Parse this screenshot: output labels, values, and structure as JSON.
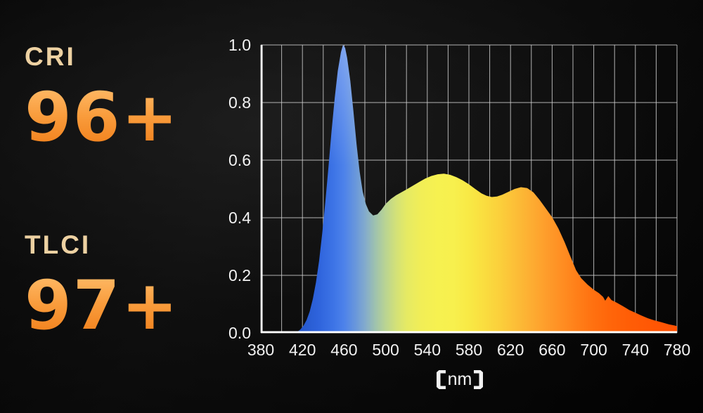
{
  "metrics": [
    {
      "id": "cri",
      "label": "CRI",
      "value": "96+"
    },
    {
      "id": "tlci",
      "label": "TLCI",
      "value": "97+"
    }
  ],
  "colors": {
    "metric_label": "#edd1a2",
    "metric_value_top": "#ffbd6b",
    "metric_value_bottom": "#f07d18",
    "axis_text": "#f2f2f2",
    "gridline": "#cfcfcf",
    "axis_line": "#ffffff",
    "background": "#0a0a0a"
  },
  "chart_data": {
    "type": "area",
    "title": "",
    "xlabel": "",
    "ylabel": "",
    "x_unit": "nm",
    "x_unit_display": "【nm】",
    "x_range": [
      380,
      780
    ],
    "y_range": [
      0,
      1
    ],
    "x_minor_step": 20,
    "x_ticks": [
      "380",
      "420",
      "460",
      "500",
      "540",
      "580",
      "620",
      "660",
      "700",
      "740",
      "780"
    ],
    "x_tick_values": [
      380,
      420,
      460,
      500,
      540,
      580,
      620,
      660,
      700,
      740,
      780
    ],
    "y_ticks": [
      "0.0",
      "0.2",
      "0.4",
      "0.6",
      "0.8",
      "1.0"
    ],
    "y_tick_values": [
      0,
      0.2,
      0.4,
      0.6,
      0.8,
      1.0
    ],
    "grid": {
      "vertical_every_nm": 20,
      "horizontal_every": 0.2,
      "shown": true
    },
    "legend": {
      "shown": false
    },
    "series": [
      {
        "name": "spectral-power-distribution",
        "peaks": [
          {
            "nm": 459,
            "value": 1.0
          },
          {
            "nm": 556,
            "value": 0.55
          },
          {
            "nm": 630,
            "value": 0.51
          }
        ],
        "valleys": [
          {
            "nm": 488,
            "value": 0.41
          },
          {
            "nm": 602,
            "value": 0.47
          }
        ],
        "points": [
          [
            415,
            0.004
          ],
          [
            418,
            0.012
          ],
          [
            421,
            0.025
          ],
          [
            424,
            0.045
          ],
          [
            427,
            0.075
          ],
          [
            430,
            0.118
          ],
          [
            433,
            0.175
          ],
          [
            436,
            0.25
          ],
          [
            439,
            0.345
          ],
          [
            442,
            0.455
          ],
          [
            445,
            0.575
          ],
          [
            448,
            0.7
          ],
          [
            451,
            0.815
          ],
          [
            454,
            0.91
          ],
          [
            457,
            0.975
          ],
          [
            459,
            1.0
          ],
          [
            461,
            0.99
          ],
          [
            463,
            0.955
          ],
          [
            466,
            0.875
          ],
          [
            469,
            0.77
          ],
          [
            472,
            0.655
          ],
          [
            475,
            0.56
          ],
          [
            478,
            0.49
          ],
          [
            481,
            0.447
          ],
          [
            484,
            0.422
          ],
          [
            488,
            0.408
          ],
          [
            492,
            0.412
          ],
          [
            496,
            0.428
          ],
          [
            500,
            0.448
          ],
          [
            505,
            0.465
          ],
          [
            510,
            0.478
          ],
          [
            515,
            0.488
          ],
          [
            520,
            0.498
          ],
          [
            526,
            0.511
          ],
          [
            532,
            0.524
          ],
          [
            538,
            0.536
          ],
          [
            544,
            0.545
          ],
          [
            550,
            0.551
          ],
          [
            556,
            0.553
          ],
          [
            562,
            0.549
          ],
          [
            568,
            0.541
          ],
          [
            574,
            0.53
          ],
          [
            580,
            0.516
          ],
          [
            586,
            0.5
          ],
          [
            592,
            0.485
          ],
          [
            597,
            0.476
          ],
          [
            602,
            0.472
          ],
          [
            607,
            0.474
          ],
          [
            612,
            0.48
          ],
          [
            618,
            0.49
          ],
          [
            624,
            0.5
          ],
          [
            630,
            0.506
          ],
          [
            636,
            0.503
          ],
          [
            642,
            0.488
          ],
          [
            648,
            0.462
          ],
          [
            654,
            0.432
          ],
          [
            660,
            0.402
          ],
          [
            666,
            0.363
          ],
          [
            672,
            0.315
          ],
          [
            678,
            0.262
          ],
          [
            683,
            0.218
          ],
          [
            688,
            0.19
          ],
          [
            694,
            0.168
          ],
          [
            700,
            0.15
          ],
          [
            705,
            0.138
          ],
          [
            709,
            0.125
          ],
          [
            711,
            0.112
          ],
          [
            714,
            0.128
          ],
          [
            717,
            0.114
          ],
          [
            722,
            0.105
          ],
          [
            728,
            0.093
          ],
          [
            734,
            0.08
          ],
          [
            740,
            0.07
          ],
          [
            746,
            0.06
          ],
          [
            752,
            0.051
          ],
          [
            758,
            0.044
          ],
          [
            765,
            0.037
          ],
          [
            772,
            0.03
          ],
          [
            777,
            0.026
          ],
          [
            780,
            0.024
          ]
        ]
      }
    ],
    "gradient_stops": [
      {
        "nm": 415,
        "color": "#2456c8"
      },
      {
        "nm": 435,
        "color": "#2e63dc"
      },
      {
        "nm": 450,
        "color": "#3d74e6"
      },
      {
        "nm": 460,
        "color": "#4d82ea"
      },
      {
        "nm": 470,
        "color": "#6695dd"
      },
      {
        "nm": 480,
        "color": "#82aacd"
      },
      {
        "nm": 490,
        "color": "#9fc2ae"
      },
      {
        "nm": 500,
        "color": "#bad492"
      },
      {
        "nm": 510,
        "color": "#d3e178"
      },
      {
        "nm": 520,
        "color": "#e5ea64"
      },
      {
        "nm": 535,
        "color": "#f2ee56"
      },
      {
        "nm": 550,
        "color": "#f6f150"
      },
      {
        "nm": 565,
        "color": "#f7f04e"
      },
      {
        "nm": 580,
        "color": "#f8e945"
      },
      {
        "nm": 595,
        "color": "#fadd3f"
      },
      {
        "nm": 610,
        "color": "#fbcf3b"
      },
      {
        "nm": 625,
        "color": "#fcbe37"
      },
      {
        "nm": 640,
        "color": "#fdad32"
      },
      {
        "nm": 655,
        "color": "#fe9c2b"
      },
      {
        "nm": 670,
        "color": "#ff8d22"
      },
      {
        "nm": 685,
        "color": "#ff7e18"
      },
      {
        "nm": 700,
        "color": "#ff7010"
      },
      {
        "nm": 715,
        "color": "#ff660a"
      },
      {
        "nm": 735,
        "color": "#ff5d06"
      },
      {
        "nm": 760,
        "color": "#ff5604"
      },
      {
        "nm": 780,
        "color": "#ff5203"
      }
    ]
  }
}
